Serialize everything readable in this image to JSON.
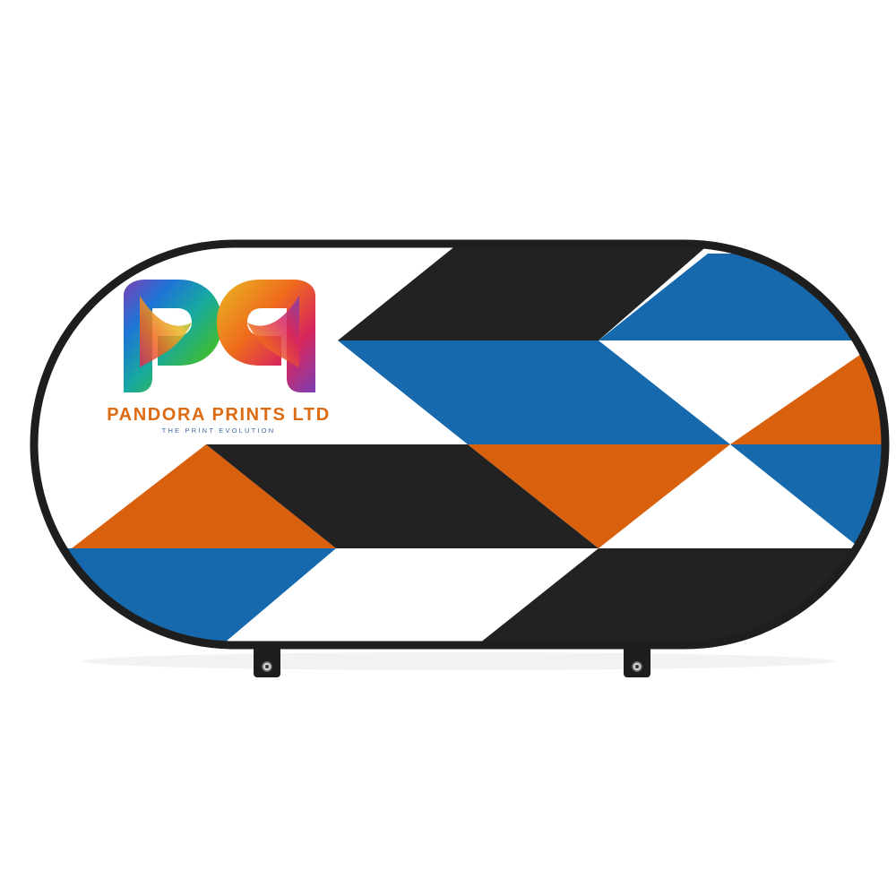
{
  "banner": {
    "type": "oval pop-up A-frame banner",
    "frame_color": "#1e1e1e",
    "panel_color": "#ffffff",
    "pattern_colors": {
      "black": "#222222",
      "blue": "#1769ad",
      "orange": "#d9600d",
      "white": "#ffffff"
    }
  },
  "logo": {
    "monogram_icon": "rainbow-pp-monogram",
    "monogram_colors": [
      "#7b3fb5",
      "#1f74d6",
      "#17a9a0",
      "#3cba3c",
      "#e8b923",
      "#ef6c1c",
      "#d8265c"
    ],
    "company_name": "PANDORA PRINTS LTD",
    "tagline": "THE PRINT EVOLUTION",
    "name_color": "#dd6b12",
    "tagline_color": "#3f6aa3"
  },
  "accessories": {
    "grommet_icon": "metal-eyelet-tab",
    "tab_count": 2
  }
}
